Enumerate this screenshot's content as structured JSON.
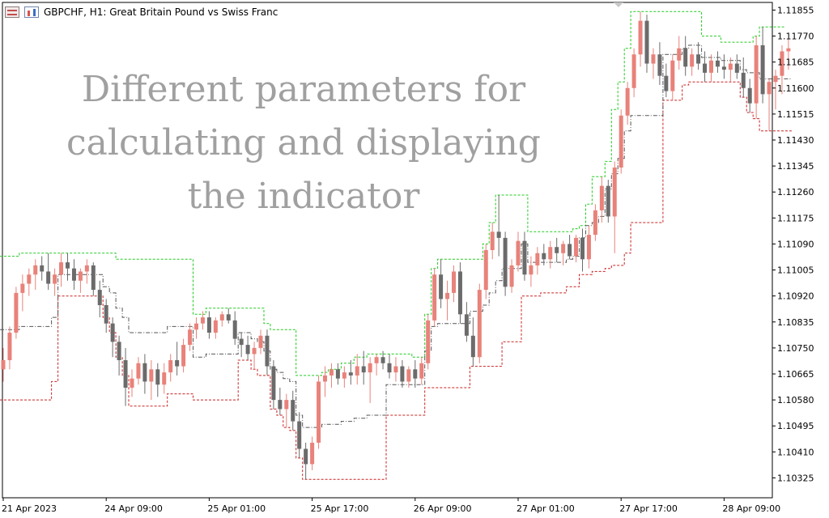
{
  "header": {
    "symbol_text": "GBPCHF, H1:  Great Britain Pound vs Swiss Franc",
    "icons": [
      "chart-properties-icon",
      "candles-icon"
    ]
  },
  "overlay": {
    "lines": [
      "Different parameters for",
      "calculating and displaying",
      "the indicator"
    ]
  },
  "colors": {
    "bull": "#e8827a",
    "bear": "#6b6b6b",
    "upper_band": "#22cc22",
    "lower_band": "#cc2222",
    "middle_line": "#555555",
    "axis": "#000000"
  },
  "chart_data": {
    "type": "candlestick",
    "title": "GBPCHF, H1:  Great Britain Pound vs Swiss Franc",
    "ylim": [
      1.1026,
      1.1188
    ],
    "y_ticks": [
      1.11855,
      1.1177,
      1.11685,
      1.116,
      1.11515,
      1.1143,
      1.11345,
      1.1126,
      1.11175,
      1.1109,
      1.11005,
      1.1092,
      1.10835,
      1.1075,
      1.10665,
      1.1058,
      1.10495,
      1.1041,
      1.10325
    ],
    "y_tick_labels": [
      "1.11855",
      "1.11770",
      "1.11685",
      "1.11600",
      "1.11515",
      "1.11430",
      "1.11345",
      "1.11260",
      "1.11175",
      "1.11090",
      "1.11005",
      "1.10920",
      "1.10835",
      "1.10750",
      "1.10665",
      "1.10580",
      "1.10495",
      "1.10410",
      "1.10325"
    ],
    "x_tick_labels": [
      "21 Apr 2023",
      "24 Apr 09:00",
      "25 Apr 01:00",
      "25 Apr 17:00",
      "26 Apr 09:00",
      "27 Apr 01:00",
      "27 Apr 17:00",
      "28 Apr 09:00"
    ],
    "x_tick_index": [
      0,
      16,
      32,
      48,
      64,
      80,
      96,
      112
    ],
    "candles": [
      [
        1.1068,
        1.1075,
        1.1064,
        1.1071
      ],
      [
        1.1071,
        1.1082,
        1.1068,
        1.108
      ],
      [
        1.108,
        1.1095,
        1.1078,
        1.1093
      ],
      [
        1.1093,
        1.1099,
        1.1087,
        1.1096
      ],
      [
        1.1096,
        1.1101,
        1.1092,
        1.1099
      ],
      [
        1.1099,
        1.1104,
        1.1094,
        1.1102
      ],
      [
        1.1102,
        1.1105,
        1.1097,
        1.11
      ],
      [
        1.11,
        1.1106,
        1.1094,
        1.1096
      ],
      [
        1.1096,
        1.1101,
        1.1092,
        1.1099
      ],
      [
        1.1099,
        1.1106,
        1.1095,
        1.1103
      ],
      [
        1.1103,
        1.1106,
        1.1097,
        1.1101
      ],
      [
        1.1101,
        1.1104,
        1.1094,
        1.1097
      ],
      [
        1.1097,
        1.1101,
        1.1093,
        1.11
      ],
      [
        1.11,
        1.1104,
        1.1096,
        1.1102
      ],
      [
        1.1102,
        1.1103,
        1.1092,
        1.1094
      ],
      [
        1.1094,
        1.1097,
        1.1085,
        1.1089
      ],
      [
        1.1089,
        1.1091,
        1.108,
        1.1083
      ],
      [
        1.1083,
        1.1085,
        1.1072,
        1.1077
      ],
      [
        1.1077,
        1.1079,
        1.1066,
        1.1071
      ],
      [
        1.1071,
        1.1075,
        1.1056,
        1.1062
      ],
      [
        1.1062,
        1.1068,
        1.1059,
        1.1065
      ],
      [
        1.1065,
        1.1072,
        1.1063,
        1.107
      ],
      [
        1.107,
        1.1073,
        1.106,
        1.1064
      ],
      [
        1.1064,
        1.1071,
        1.1058,
        1.1068
      ],
      [
        1.1068,
        1.107,
        1.1059,
        1.1063
      ],
      [
        1.1063,
        1.107,
        1.106,
        1.1067
      ],
      [
        1.1067,
        1.1073,
        1.1064,
        1.1071
      ],
      [
        1.1071,
        1.1077,
        1.1066,
        1.1069
      ],
      [
        1.1069,
        1.1078,
        1.1067,
        1.1076
      ],
      [
        1.1076,
        1.1083,
        1.1074,
        1.1081
      ],
      [
        1.1081,
        1.1085,
        1.1078,
        1.1083
      ],
      [
        1.1083,
        1.1087,
        1.1081,
        1.1085
      ],
      [
        1.1085,
        1.1087,
        1.1078,
        1.108
      ],
      [
        1.108,
        1.1085,
        1.1078,
        1.1084
      ],
      [
        1.1084,
        1.1087,
        1.1082,
        1.1086
      ],
      [
        1.1086,
        1.1088,
        1.1083,
        1.1084
      ],
      [
        1.1084,
        1.1087,
        1.1076,
        1.1078
      ],
      [
        1.1078,
        1.108,
        1.1072,
        1.1076
      ],
      [
        1.1076,
        1.1079,
        1.1071,
        1.1073
      ],
      [
        1.1073,
        1.1077,
        1.1068,
        1.1075
      ],
      [
        1.1075,
        1.1081,
        1.1073,
        1.1079
      ],
      [
        1.1079,
        1.1081,
        1.1066,
        1.1069
      ],
      [
        1.1069,
        1.1071,
        1.1055,
        1.1058
      ],
      [
        1.1058,
        1.1062,
        1.1053,
        1.1055
      ],
      [
        1.1055,
        1.106,
        1.1049,
        1.1058
      ],
      [
        1.1058,
        1.1061,
        1.1048,
        1.1051
      ],
      [
        1.1051,
        1.1054,
        1.1039,
        1.1042
      ],
      [
        1.1042,
        1.1044,
        1.1032,
        1.1037
      ],
      [
        1.1037,
        1.1046,
        1.1035,
        1.1044
      ],
      [
        1.1044,
        1.1066,
        1.1042,
        1.1064
      ],
      [
        1.1064,
        1.1069,
        1.1059,
        1.1066
      ],
      [
        1.1066,
        1.107,
        1.1062,
        1.1068
      ],
      [
        1.1068,
        1.107,
        1.1063,
        1.1065
      ],
      [
        1.1065,
        1.1069,
        1.1062,
        1.1067
      ],
      [
        1.1067,
        1.1071,
        1.1063,
        1.1066
      ],
      [
        1.1066,
        1.1073,
        1.1063,
        1.1069
      ],
      [
        1.1069,
        1.1074,
        1.1063,
        1.1067
      ],
      [
        1.1067,
        1.1072,
        1.1057,
        1.107
      ],
      [
        1.107,
        1.1073,
        1.1066,
        1.1072
      ],
      [
        1.1072,
        1.1074,
        1.1068,
        1.107
      ],
      [
        1.107,
        1.1073,
        1.1065,
        1.1067
      ],
      [
        1.1067,
        1.1072,
        1.1064,
        1.1069
      ],
      [
        1.1069,
        1.1071,
        1.1062,
        1.1064
      ],
      [
        1.1064,
        1.1069,
        1.1062,
        1.1068
      ],
      [
        1.1068,
        1.1071,
        1.1062,
        1.1065
      ],
      [
        1.1065,
        1.1072,
        1.1063,
        1.107
      ],
      [
        1.107,
        1.1086,
        1.1068,
        1.1084
      ],
      [
        1.1084,
        1.1101,
        1.1082,
        1.1099
      ],
      [
        1.1099,
        1.1104,
        1.1088,
        1.1091
      ],
      [
        1.1091,
        1.1097,
        1.1084,
        1.1093
      ],
      [
        1.1093,
        1.1102,
        1.109,
        1.11
      ],
      [
        1.11,
        1.1103,
        1.1083,
        1.1086
      ],
      [
        1.1086,
        1.109,
        1.1077,
        1.1079
      ],
      [
        1.1079,
        1.1085,
        1.1069,
        1.1072
      ],
      [
        1.1072,
        1.1096,
        1.107,
        1.1094
      ],
      [
        1.1094,
        1.1109,
        1.1091,
        1.1107
      ],
      [
        1.1107,
        1.1116,
        1.1104,
        1.1113
      ],
      [
        1.1113,
        1.1125,
        1.1105,
        1.1111
      ],
      [
        1.1111,
        1.1113,
        1.1092,
        1.1095
      ],
      [
        1.1095,
        1.1104,
        1.1093,
        1.1102
      ],
      [
        1.1102,
        1.1113,
        1.11,
        1.111
      ],
      [
        1.111,
        1.1113,
        1.1097,
        1.1099
      ],
      [
        1.1099,
        1.1105,
        1.1095,
        1.1102
      ],
      [
        1.1102,
        1.1108,
        1.1099,
        1.1106
      ],
      [
        1.1106,
        1.1109,
        1.1102,
        1.1104
      ],
      [
        1.1104,
        1.111,
        1.1101,
        1.1108
      ],
      [
        1.1108,
        1.1111,
        1.1103,
        1.1106
      ],
      [
        1.1106,
        1.111,
        1.1102,
        1.1109
      ],
      [
        1.1109,
        1.1112,
        1.1104,
        1.1105
      ],
      [
        1.1105,
        1.1112,
        1.1103,
        1.1111
      ],
      [
        1.1111,
        1.1114,
        1.11,
        1.1104
      ],
      [
        1.1104,
        1.1115,
        1.1101,
        1.1112
      ],
      [
        1.1112,
        1.1122,
        1.111,
        1.112
      ],
      [
        1.112,
        1.1131,
        1.1116,
        1.1128
      ],
      [
        1.1128,
        1.113,
        1.1116,
        1.1118
      ],
      [
        1.1118,
        1.1136,
        1.1106,
        1.1134
      ],
      [
        1.1134,
        1.1153,
        1.1132,
        1.1151
      ],
      [
        1.1151,
        1.1162,
        1.1148,
        1.116
      ],
      [
        1.116,
        1.1173,
        1.1157,
        1.1171
      ],
      [
        1.1171,
        1.1185,
        1.1167,
        1.1182
      ],
      [
        1.1182,
        1.1184,
        1.1165,
        1.1168
      ],
      [
        1.1168,
        1.1173,
        1.1163,
        1.1171
      ],
      [
        1.1171,
        1.1175,
        1.1161,
        1.1164
      ],
      [
        1.1164,
        1.1168,
        1.1157,
        1.1159
      ],
      [
        1.1159,
        1.1171,
        1.1156,
        1.1169
      ],
      [
        1.1169,
        1.1177,
        1.1166,
        1.1173
      ],
      [
        1.1173,
        1.1177,
        1.1164,
        1.1167
      ],
      [
        1.1167,
        1.1173,
        1.1164,
        1.1171
      ],
      [
        1.1171,
        1.1175,
        1.1166,
        1.1168
      ],
      [
        1.1168,
        1.1172,
        1.1162,
        1.1165
      ],
      [
        1.1165,
        1.1171,
        1.1162,
        1.1169
      ],
      [
        1.1169,
        1.1172,
        1.1165,
        1.1167
      ],
      [
        1.1167,
        1.1171,
        1.1163,
        1.1166
      ],
      [
        1.1166,
        1.117,
        1.1162,
        1.1168
      ],
      [
        1.1168,
        1.1171,
        1.1163,
        1.1165
      ],
      [
        1.1165,
        1.117,
        1.1157,
        1.116
      ],
      [
        1.116,
        1.1163,
        1.1152,
        1.1155
      ],
      [
        1.1155,
        1.1177,
        1.115,
        1.1174
      ],
      [
        1.1174,
        1.118,
        1.1155,
        1.1158
      ],
      [
        1.1158,
        1.1163,
        1.1146,
        1.1162
      ],
      [
        1.1162,
        1.1166,
        1.1153,
        1.1164
      ],
      [
        1.1164,
        1.1174,
        1.1158,
        1.1172
      ],
      [
        1.1172,
        1.1176,
        1.1166,
        1.1173
      ]
    ],
    "upper_band": [
      1.1105,
      1.1105,
      1.1105,
      1.1106,
      1.1106,
      1.1106,
      1.1106,
      1.1106,
      1.1106,
      1.1106,
      1.1106,
      1.1106,
      1.1106,
      1.1106,
      1.1106,
      1.1106,
      1.1106,
      1.1106,
      1.1104,
      1.1104,
      1.1104,
      1.1104,
      1.1104,
      1.1104,
      1.1104,
      1.1104,
      1.1104,
      1.1104,
      1.1104,
      1.1104,
      1.1086,
      1.1086,
      1.1088,
      1.1088,
      1.1088,
      1.1088,
      1.1088,
      1.1088,
      1.1088,
      1.1088,
      1.1088,
      1.1083,
      1.1081,
      1.1081,
      1.1081,
      1.1081,
      1.1066,
      1.1066,
      1.1066,
      1.1066,
      1.1067,
      1.1068,
      1.1068,
      1.107,
      1.107,
      1.1072,
      1.1072,
      1.1073,
      1.1073,
      1.1073,
      1.1073,
      1.1073,
      1.1073,
      1.1073,
      1.1072,
      1.1072,
      1.1086,
      1.1101,
      1.1104,
      1.1104,
      1.1104,
      1.1104,
      1.1104,
      1.1104,
      1.1104,
      1.1109,
      1.1116,
      1.1125,
      1.1125,
      1.1125,
      1.1125,
      1.1125,
      1.1113,
      1.1113,
      1.1113,
      1.1113,
      1.1113,
      1.1113,
      1.1113,
      1.1114,
      1.1115,
      1.1122,
      1.1131,
      1.1131,
      1.1136,
      1.1153,
      1.1162,
      1.1173,
      1.1185,
      1.1185,
      1.1185,
      1.1185,
      1.1185,
      1.1185,
      1.1185,
      1.1185,
      1.1185,
      1.1185,
      1.1185,
      1.1177,
      1.1177,
      1.1177,
      1.1175,
      1.1175,
      1.1175,
      1.1175,
      1.1175,
      1.1177,
      1.118,
      1.118,
      1.118,
      1.118
    ],
    "lower_band": [
      1.1058,
      1.1058,
      1.1058,
      1.1058,
      1.1058,
      1.1058,
      1.1058,
      1.1058,
      1.1064,
      1.1092,
      1.1092,
      1.1092,
      1.1092,
      1.1092,
      1.1092,
      1.1092,
      1.1085,
      1.108,
      1.1072,
      1.1066,
      1.1056,
      1.1056,
      1.1056,
      1.1056,
      1.1056,
      1.1056,
      1.106,
      1.106,
      1.106,
      1.106,
      1.1058,
      1.1058,
      1.1058,
      1.1058,
      1.1058,
      1.1058,
      1.1058,
      1.1071,
      1.1071,
      1.1068,
      1.1066,
      1.1066,
      1.1055,
      1.1053,
      1.1049,
      1.1048,
      1.1039,
      1.1032,
      1.1032,
      1.1032,
      1.1032,
      1.1032,
      1.1032,
      1.1032,
      1.1032,
      1.1032,
      1.1032,
      1.1032,
      1.1032,
      1.1032,
      1.1053,
      1.1053,
      1.1053,
      1.1053,
      1.1053,
      1.1053,
      1.1062,
      1.1062,
      1.1062,
      1.1062,
      1.1062,
      1.1062,
      1.1062,
      1.1069,
      1.1069,
      1.1069,
      1.1069,
      1.1069,
      1.1077,
      1.1077,
      1.1077,
      1.1092,
      1.1092,
      1.1092,
      1.1093,
      1.1093,
      1.1093,
      1.1093,
      1.1095,
      1.1095,
      1.1099,
      1.1099,
      1.11,
      1.11,
      1.1101,
      1.1102,
      1.1102,
      1.1106,
      1.1116,
      1.1116,
      1.1116,
      1.1116,
      1.1116,
      1.1156,
      1.1156,
      1.1156,
      1.1161,
      1.1162,
      1.1162,
      1.1162,
      1.1162,
      1.1162,
      1.1162,
      1.1162,
      1.1162,
      1.1157,
      1.1152,
      1.115,
      1.1146,
      1.1146,
      1.1146,
      1.1146,
      1.1146
    ],
    "middle_line": [
      1.1081,
      1.1081,
      1.1081,
      1.1082,
      1.1082,
      1.1082,
      1.1082,
      1.1082,
      1.1085,
      1.1099,
      1.1099,
      1.1099,
      1.1099,
      1.1099,
      1.1099,
      1.1099,
      1.1095,
      1.1093,
      1.1088,
      1.1085,
      1.108,
      1.108,
      1.108,
      1.108,
      1.108,
      1.108,
      1.1082,
      1.1082,
      1.1082,
      1.1082,
      1.1072,
      1.1072,
      1.1073,
      1.1073,
      1.1073,
      1.1073,
      1.1073,
      1.108,
      1.108,
      1.1078,
      1.1077,
      1.1074,
      1.1068,
      1.1067,
      1.1065,
      1.1064,
      1.1053,
      1.1049,
      1.1049,
      1.1049,
      1.105,
      1.105,
      1.105,
      1.1051,
      1.1051,
      1.1052,
      1.1052,
      1.1053,
      1.1053,
      1.1053,
      1.1063,
      1.1063,
      1.1063,
      1.1063,
      1.1063,
      1.1063,
      1.1074,
      1.1082,
      1.1083,
      1.1083,
      1.1083,
      1.1083,
      1.1083,
      1.1087,
      1.1087,
      1.1089,
      1.1093,
      1.1097,
      1.1101,
      1.1101,
      1.1101,
      1.1109,
      1.1103,
      1.1103,
      1.1103,
      1.1103,
      1.1103,
      1.1103,
      1.1104,
      1.1105,
      1.1111,
      1.1115,
      1.1116,
      1.1118,
      1.1127,
      1.1132,
      1.1137,
      1.1146,
      1.1151,
      1.1151,
      1.1151,
      1.1151,
      1.1151,
      1.1171,
      1.1171,
      1.1171,
      1.1173,
      1.1174,
      1.1174,
      1.117,
      1.117,
      1.117,
      1.1169,
      1.1169,
      1.1169,
      1.1166,
      1.1165,
      1.1165,
      1.1163,
      1.1163,
      1.1163,
      1.1163,
      1.1163
    ]
  }
}
